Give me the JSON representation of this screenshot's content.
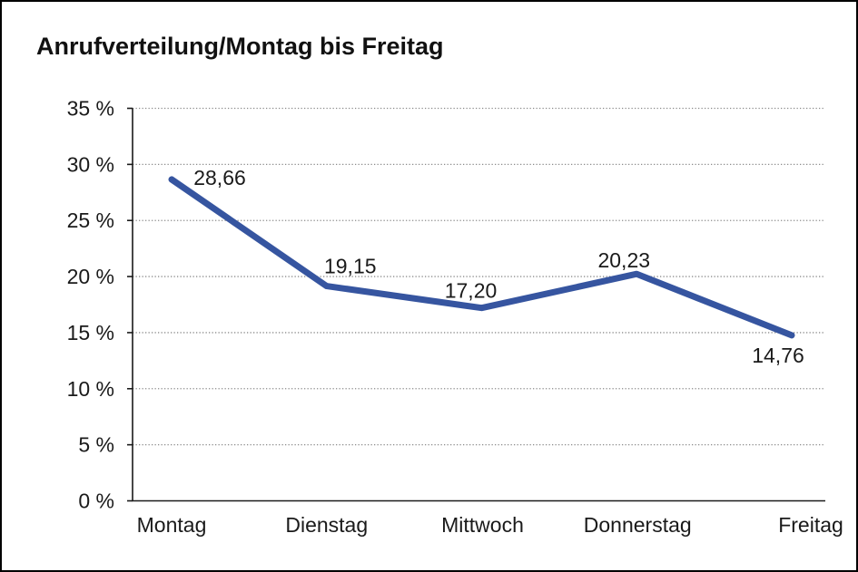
{
  "page": {
    "background": "#ffffff",
    "border_color": "#000000"
  },
  "chart_data": {
    "type": "line",
    "title": "Anrufverteilung/Montag bis Freitag",
    "categories": [
      "Montag",
      "Dienstag",
      "Mittwoch",
      "Donnerstag",
      "Freitag"
    ],
    "series": [
      {
        "name": "Anrufverteilung",
        "values": [
          28.66,
          19.15,
          17.2,
          20.23,
          14.76
        ],
        "color": "#3655A0"
      }
    ],
    "data_labels": [
      "28,66",
      "19,15",
      "17,20",
      "20,23",
      "14,76"
    ],
    "y_tick_labels": [
      "0 %",
      "5 %",
      "10 %",
      "15 %",
      "20 %",
      "25 %",
      "30 %",
      "35 %"
    ],
    "ylim": [
      0,
      35
    ],
    "y_tick_step": 5,
    "xlabel": "",
    "ylabel": "",
    "legend": "none",
    "grid": "horizontal-dotted",
    "grid_color": "#8c8c8c",
    "axis_color": "#1a1a1a",
    "text_color": "#1a1a1a",
    "decimal_separator": ","
  }
}
